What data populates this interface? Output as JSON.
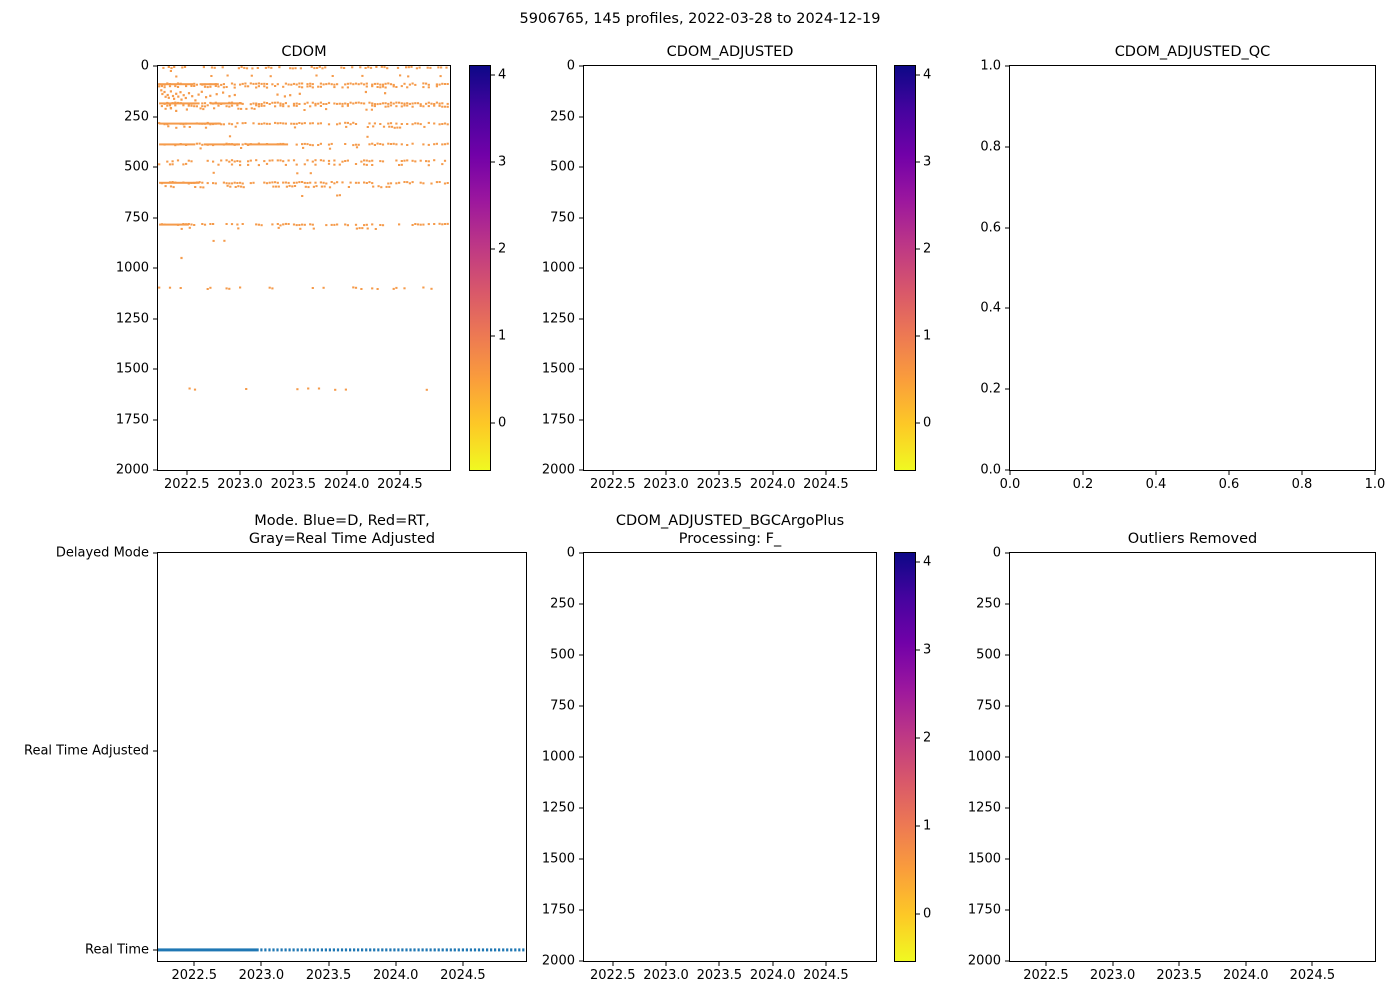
{
  "figure": {
    "title": "5906765, 145 profiles, 2022-03-28 to 2024-12-19"
  },
  "colors": {
    "background": "#ffffff",
    "axis": "#000000",
    "scatter_orange": "#f59b4b",
    "mode_blue": "#1f77b4",
    "colorbar_gradient_top_to_bottom": [
      "#0d0887",
      "#46039f",
      "#7201a8",
      "#9c179e",
      "#bd3786",
      "#d8576b",
      "#ed7953",
      "#fa9e3b",
      "#fdc926",
      "#f0f921"
    ]
  },
  "chart_data": [
    {
      "id": "cdom",
      "type": "scatter",
      "title": "CDOM",
      "xlabel": "",
      "ylabel": "",
      "xlim": [
        2022.23,
        2024.97
      ],
      "ylim_top_bottom": [
        0,
        2000
      ],
      "xticks": [
        {
          "v": 2022.5,
          "label": "2022.5"
        },
        {
          "v": 2023.0,
          "label": "2023.0"
        },
        {
          "v": 2023.5,
          "label": "2023.5"
        },
        {
          "v": 2024.0,
          "label": "2024.0"
        },
        {
          "v": 2024.5,
          "label": "2024.5"
        }
      ],
      "yticks": [
        {
          "v": 0,
          "label": "0"
        },
        {
          "v": 250,
          "label": "250"
        },
        {
          "v": 500,
          "label": "500"
        },
        {
          "v": 750,
          "label": "750"
        },
        {
          "v": 1000,
          "label": "1000"
        },
        {
          "v": 1250,
          "label": "1250"
        },
        {
          "v": 1500,
          "label": "1500"
        },
        {
          "v": 1750,
          "label": "1750"
        },
        {
          "v": 2000,
          "label": "2000"
        }
      ],
      "colorbar": {
        "clim_top_bottom": [
          4.1,
          -0.54
        ],
        "ticks": [
          {
            "v": 4,
            "label": "4"
          },
          {
            "v": 3,
            "label": "3"
          },
          {
            "v": 2,
            "label": "2"
          },
          {
            "v": 1,
            "label": "1"
          },
          {
            "v": 0,
            "label": "0"
          }
        ]
      },
      "bands": [
        {
          "d": 8,
          "x0": 2022.28,
          "x1": 2024.95,
          "den": 0.5
        },
        {
          "d": 22,
          "x0": 2022.35,
          "x1": 2023.2,
          "den": 0.06
        },
        {
          "d": 50,
          "x0": 2022.3,
          "x1": 2024.9,
          "den": 0.1
        },
        {
          "d": 90,
          "x0": 2022.24,
          "x1": 2024.96,
          "den": 0.72,
          "solid": [
            [
              2022.24,
              2022.56
            ],
            [
              2022.62,
              2022.8
            ]
          ]
        },
        {
          "d": 103,
          "x0": 2022.24,
          "x1": 2024.96,
          "den": 0.42
        },
        {
          "d": 185,
          "x0": 2022.24,
          "x1": 2024.96,
          "den": 0.78,
          "solid": [
            [
              2022.24,
              2022.62
            ],
            [
              2022.72,
              2023.02
            ]
          ]
        },
        {
          "d": 198,
          "x0": 2022.24,
          "x1": 2024.96,
          "den": 0.55
        },
        {
          "d": 213,
          "x0": 2022.3,
          "x1": 2023.2,
          "den": 0.22
        },
        {
          "d": 216,
          "x0": 2023.3,
          "x1": 2024.7,
          "den": 0.07
        },
        {
          "d": 285,
          "x0": 2022.24,
          "x1": 2024.96,
          "den": 0.68,
          "solid": [
            [
              2022.24,
              2022.82
            ]
          ]
        },
        {
          "d": 302,
          "x0": 2022.3,
          "x1": 2024.9,
          "den": 0.16
        },
        {
          "d": 350,
          "x0": 2022.5,
          "x1": 2024.4,
          "den": 0.05
        },
        {
          "d": 388,
          "x0": 2022.24,
          "x1": 2024.96,
          "den": 0.6,
          "solid": [
            [
              2022.24,
              2022.58
            ],
            [
              2022.66,
              2023.0
            ],
            [
              2023.06,
              2023.45
            ]
          ]
        },
        {
          "d": 406,
          "x0": 2022.3,
          "x1": 2024.2,
          "den": 0.11
        },
        {
          "d": 470,
          "x0": 2022.24,
          "x1": 2024.96,
          "den": 0.5
        },
        {
          "d": 488,
          "x0": 2022.24,
          "x1": 2024.9,
          "den": 0.26
        },
        {
          "d": 530,
          "x0": 2022.6,
          "x1": 2024.4,
          "den": 0.05
        },
        {
          "d": 578,
          "x0": 2022.24,
          "x1": 2024.96,
          "den": 0.62,
          "solid": [
            [
              2022.24,
              2022.62
            ]
          ]
        },
        {
          "d": 597,
          "x0": 2022.3,
          "x1": 2024.5,
          "den": 0.32
        },
        {
          "d": 640,
          "x0": 2023.0,
          "x1": 2024.1,
          "den": 0.04
        },
        {
          "d": 755,
          "x0": 2024.6,
          "x1": 2024.85,
          "den": 0.15
        },
        {
          "d": 785,
          "x0": 2022.24,
          "x1": 2024.96,
          "den": 0.55,
          "solid": [
            [
              2022.24,
              2022.52
            ]
          ]
        },
        {
          "d": 803,
          "x0": 2022.35,
          "x1": 2024.3,
          "den": 0.1
        },
        {
          "d": 865,
          "x0": 2022.7,
          "x1": 2023.6,
          "den": 0.05
        },
        {
          "d": 910,
          "x0": 2022.6,
          "x1": 2023.4,
          "den": 0.04
        },
        {
          "d": 1100,
          "x0": 2022.24,
          "x1": 2024.85,
          "den": 0.22
        },
        {
          "d": 1600,
          "x0": 2022.5,
          "x1": 2024.9,
          "den": 0.08
        }
      ],
      "cluster_points": [
        [
          2022.26,
          120
        ],
        [
          2022.27,
          138
        ],
        [
          2022.29,
          128
        ],
        [
          2022.3,
          152
        ],
        [
          2022.32,
          143
        ],
        [
          2022.33,
          157
        ],
        [
          2022.35,
          125
        ],
        [
          2022.37,
          148
        ],
        [
          2022.38,
          162
        ],
        [
          2022.4,
          137
        ],
        [
          2022.42,
          151
        ],
        [
          2022.44,
          129
        ],
        [
          2022.45,
          166
        ],
        [
          2022.47,
          144
        ],
        [
          2022.49,
          158
        ],
        [
          2022.52,
          134
        ],
        [
          2022.55,
          149
        ],
        [
          2022.58,
          170
        ],
        [
          2022.61,
          141
        ],
        [
          2022.64,
          127
        ],
        [
          2022.68,
          154
        ],
        [
          2022.72,
          147
        ],
        [
          2022.78,
          139
        ],
        [
          2022.84,
          131
        ],
        [
          2022.9,
          149
        ],
        [
          2022.95,
          143
        ],
        [
          2023.35,
          141
        ],
        [
          2023.42,
          150
        ],
        [
          2023.47,
          144
        ],
        [
          2023.56,
          137
        ],
        [
          2024.18,
          128
        ],
        [
          2024.36,
          134
        ],
        [
          2022.35,
          208
        ],
        [
          2022.4,
          222
        ],
        [
          2022.5,
          215
        ],
        [
          2022.45,
          950
        ]
      ]
    },
    {
      "id": "cdom_adjusted",
      "type": "scatter",
      "title": "CDOM_ADJUSTED",
      "xlabel": "",
      "ylabel": "",
      "xlim": [
        2022.23,
        2024.97
      ],
      "ylim_top_bottom": [
        0,
        2000
      ],
      "xticks": [
        {
          "v": 2022.5,
          "label": "2022.5"
        },
        {
          "v": 2023.0,
          "label": "2023.0"
        },
        {
          "v": 2023.5,
          "label": "2023.5"
        },
        {
          "v": 2024.0,
          "label": "2024.0"
        },
        {
          "v": 2024.5,
          "label": "2024.5"
        }
      ],
      "yticks": [
        {
          "v": 0,
          "label": "0"
        },
        {
          "v": 250,
          "label": "250"
        },
        {
          "v": 500,
          "label": "500"
        },
        {
          "v": 750,
          "label": "750"
        },
        {
          "v": 1000,
          "label": "1000"
        },
        {
          "v": 1250,
          "label": "1250"
        },
        {
          "v": 1500,
          "label": "1500"
        },
        {
          "v": 1750,
          "label": "1750"
        },
        {
          "v": 2000,
          "label": "2000"
        }
      ],
      "colorbar": {
        "clim_top_bottom": [
          4.1,
          -0.54
        ],
        "ticks": [
          {
            "v": 4,
            "label": "4"
          },
          {
            "v": 3,
            "label": "3"
          },
          {
            "v": 2,
            "label": "2"
          },
          {
            "v": 1,
            "label": "1"
          },
          {
            "v": 0,
            "label": "0"
          }
        ]
      },
      "bands": [],
      "cluster_points": []
    },
    {
      "id": "cdom_adjusted_qc",
      "type": "scatter",
      "title": "CDOM_ADJUSTED_QC",
      "xlabel": "",
      "ylabel": "",
      "xlim": [
        0.0,
        1.0
      ],
      "ylim_top_bottom": [
        1.0,
        0.0
      ],
      "xticks": [
        {
          "v": 0.0,
          "label": "0.0"
        },
        {
          "v": 0.2,
          "label": "0.2"
        },
        {
          "v": 0.4,
          "label": "0.4"
        },
        {
          "v": 0.6,
          "label": "0.6"
        },
        {
          "v": 0.8,
          "label": "0.8"
        },
        {
          "v": 1.0,
          "label": "1.0"
        }
      ],
      "yticks": [
        {
          "v": 1.0,
          "label": "1.0"
        },
        {
          "v": 0.8,
          "label": "0.8"
        },
        {
          "v": 0.6,
          "label": "0.6"
        },
        {
          "v": 0.4,
          "label": "0.4"
        },
        {
          "v": 0.2,
          "label": "0.2"
        },
        {
          "v": 0.0,
          "label": "0.0"
        }
      ],
      "bands": [],
      "cluster_points": []
    },
    {
      "id": "mode",
      "type": "scatter",
      "title": "Mode. Blue=D, Red=RT,\nGray=Real Time Adjusted",
      "xlabel": "",
      "ylabel": "",
      "xlim": [
        2022.23,
        2024.97
      ],
      "ylim_top_bottom": [
        2,
        -0.056
      ],
      "xticks": [
        {
          "v": 2022.5,
          "label": "2022.5"
        },
        {
          "v": 2023.0,
          "label": "2023.0"
        },
        {
          "v": 2023.5,
          "label": "2023.5"
        },
        {
          "v": 2024.0,
          "label": "2024.0"
        },
        {
          "v": 2024.5,
          "label": "2024.5"
        }
      ],
      "yticks": [
        {
          "v": 2,
          "label": "Delayed Mode"
        },
        {
          "v": 1,
          "label": "Real Time Adjusted"
        },
        {
          "v": 0,
          "label": "Real Time"
        }
      ],
      "mode_series": {
        "level_label": "Real Time",
        "y": 0,
        "solid_x": [
          2022.23,
          2022.98
        ],
        "dots_x0": 2023.0,
        "dots_x1": 2024.96,
        "dots_step": 0.03
      }
    },
    {
      "id": "cdom_adjusted_bgcargoplus",
      "type": "scatter",
      "title": "CDOM_ADJUSTED_BGCArgoPlus\nProcessing: F_",
      "xlabel": "",
      "ylabel": "",
      "xlim": [
        2022.23,
        2024.97
      ],
      "ylim_top_bottom": [
        0,
        2000
      ],
      "xticks": [
        {
          "v": 2022.5,
          "label": "2022.5"
        },
        {
          "v": 2023.0,
          "label": "2023.0"
        },
        {
          "v": 2023.5,
          "label": "2023.5"
        },
        {
          "v": 2024.0,
          "label": "2024.0"
        },
        {
          "v": 2024.5,
          "label": "2024.5"
        }
      ],
      "yticks": [
        {
          "v": 0,
          "label": "0"
        },
        {
          "v": 250,
          "label": "250"
        },
        {
          "v": 500,
          "label": "500"
        },
        {
          "v": 750,
          "label": "750"
        },
        {
          "v": 1000,
          "label": "1000"
        },
        {
          "v": 1250,
          "label": "1250"
        },
        {
          "v": 1500,
          "label": "1500"
        },
        {
          "v": 1750,
          "label": "1750"
        },
        {
          "v": 2000,
          "label": "2000"
        }
      ],
      "colorbar": {
        "clim_top_bottom": [
          4.1,
          -0.54
        ],
        "ticks": [
          {
            "v": 4,
            "label": "4"
          },
          {
            "v": 3,
            "label": "3"
          },
          {
            "v": 2,
            "label": "2"
          },
          {
            "v": 1,
            "label": "1"
          },
          {
            "v": 0,
            "label": "0"
          }
        ]
      },
      "bands": [],
      "cluster_points": []
    },
    {
      "id": "outliers_removed",
      "type": "scatter",
      "title": "Outliers Removed",
      "xlabel": "",
      "ylabel": "",
      "xlim": [
        2022.23,
        2024.97
      ],
      "ylim_top_bottom": [
        0,
        2000
      ],
      "xticks": [
        {
          "v": 2022.5,
          "label": "2022.5"
        },
        {
          "v": 2023.0,
          "label": "2023.0"
        },
        {
          "v": 2023.5,
          "label": "2023.5"
        },
        {
          "v": 2024.0,
          "label": "2024.0"
        },
        {
          "v": 2024.5,
          "label": "2024.5"
        }
      ],
      "yticks": [
        {
          "v": 0,
          "label": "0"
        },
        {
          "v": 250,
          "label": "250"
        },
        {
          "v": 500,
          "label": "500"
        },
        {
          "v": 750,
          "label": "750"
        },
        {
          "v": 1000,
          "label": "1000"
        },
        {
          "v": 1250,
          "label": "1250"
        },
        {
          "v": 1500,
          "label": "1500"
        },
        {
          "v": 1750,
          "label": "1750"
        },
        {
          "v": 2000,
          "label": "2000"
        }
      ],
      "bands": [],
      "cluster_points": []
    }
  ]
}
